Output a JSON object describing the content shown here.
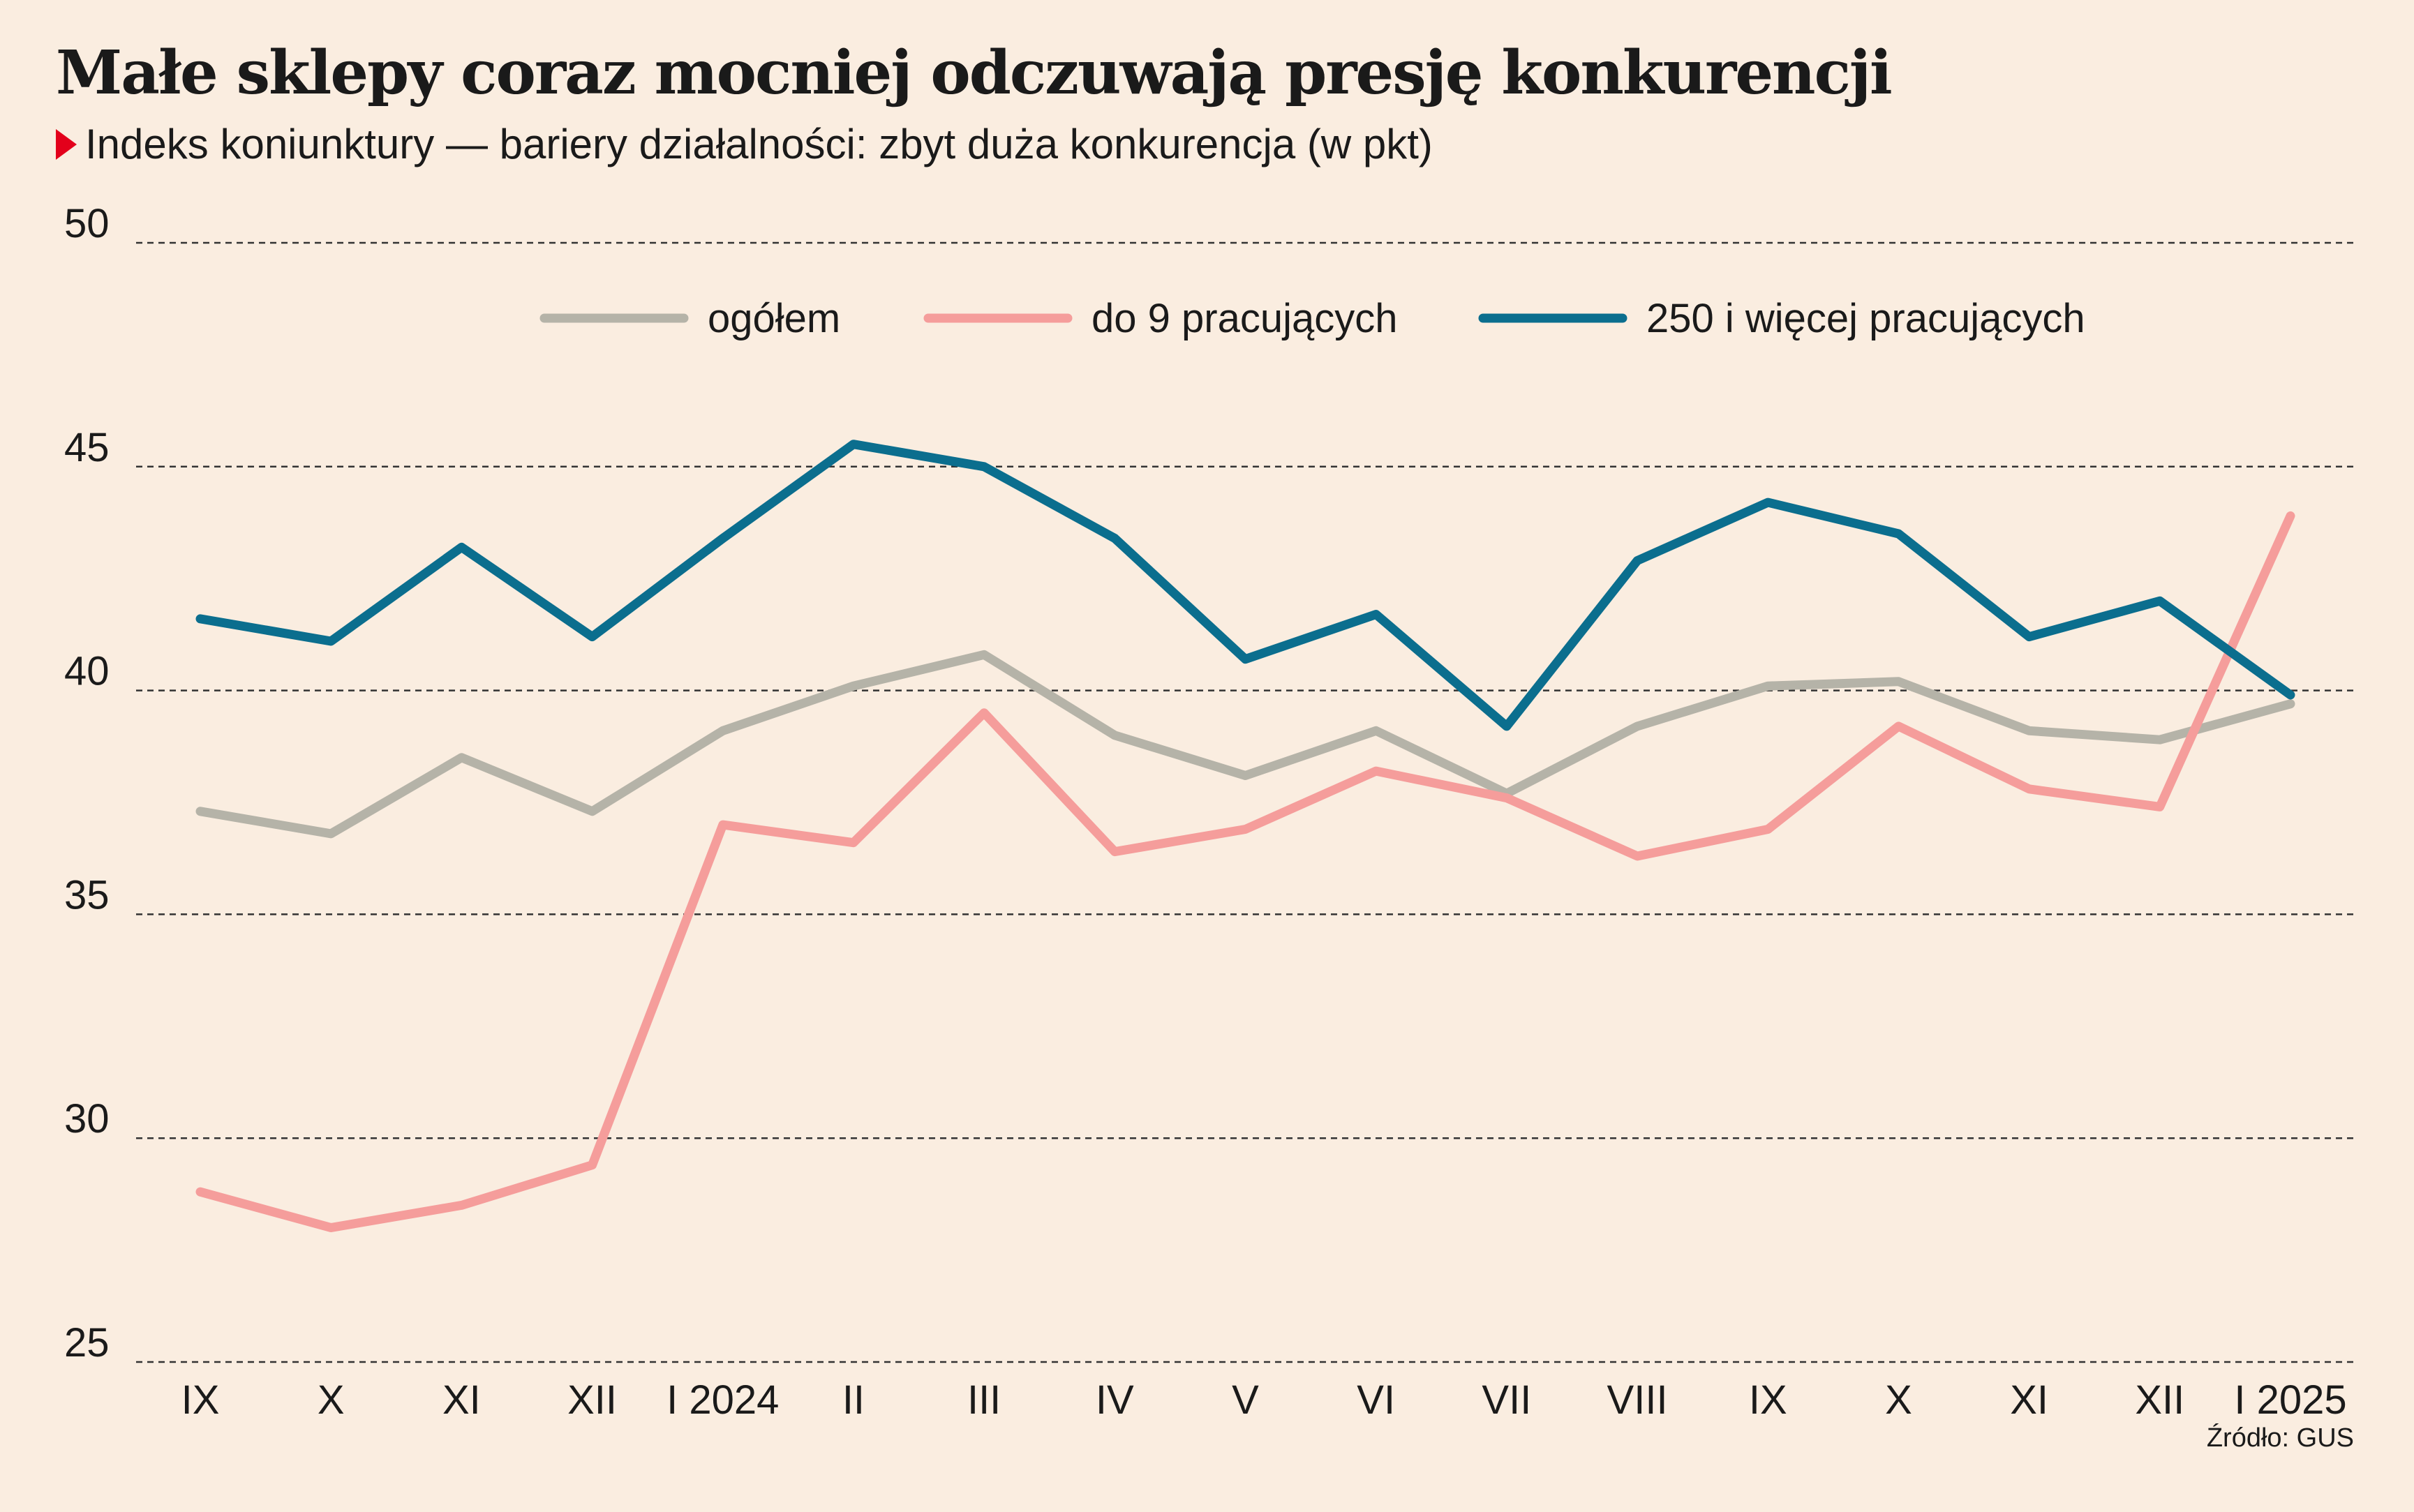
{
  "header": {
    "title": "Małe sklepy coraz mocniej odczuwają presję konkurencji",
    "subtitle": "Indeks koniunktury — bariery działalności: zbyt duża konkurencja (w pkt)"
  },
  "footer": {
    "source": "Źródło: GUS"
  },
  "colors": {
    "background": "#faede0",
    "accent_marker": "#e3001b",
    "grid": "#333333"
  },
  "chart_data": {
    "type": "line",
    "title": "Małe sklepy coraz mocniej odczuwają presję konkurencji",
    "subtitle": "Indeks koniunktury — bariery działalności: zbyt duża konkurencja (w pkt)",
    "xlabel": "",
    "ylabel": "",
    "categories": [
      "IX",
      "X",
      "XI",
      "XII",
      "I 2024",
      "II",
      "III",
      "IV",
      "V",
      "VI",
      "VII",
      "VIII",
      "IX",
      "X",
      "XI",
      "XII",
      "I 2025"
    ],
    "ylim": [
      25,
      50
    ],
    "yticks": [
      25,
      30,
      35,
      40,
      45,
      50
    ],
    "grid": true,
    "grid_style": "dashed",
    "legend_position": "top",
    "series": [
      {
        "name": "ogółem",
        "color": "#b5b3a8",
        "values": [
          37.3,
          36.8,
          38.5,
          37.3,
          39.1,
          40.1,
          40.8,
          39.0,
          38.1,
          39.1,
          37.7,
          39.2,
          40.1,
          40.2,
          39.1,
          38.9,
          39.7
        ]
      },
      {
        "name": "do 9 pracujących",
        "color": "#f59d9b",
        "values": [
          28.8,
          28.0,
          28.5,
          29.4,
          37.0,
          36.6,
          39.5,
          36.4,
          36.9,
          38.2,
          37.6,
          36.3,
          36.9,
          39.2,
          37.8,
          37.4,
          43.9
        ]
      },
      {
        "name": "250 i więcej pracujących",
        "color": "#0b6e8e",
        "values": [
          41.6,
          41.1,
          43.2,
          41.2,
          43.4,
          45.5,
          45.0,
          43.4,
          40.7,
          41.7,
          39.2,
          42.9,
          44.2,
          43.5,
          41.2,
          42.0,
          39.9
        ]
      }
    ]
  }
}
